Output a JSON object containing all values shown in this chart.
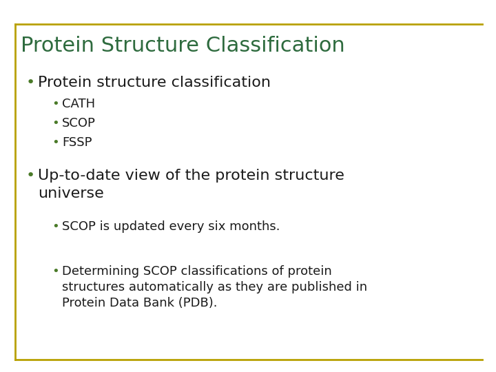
{
  "title": "Protein Structure Classification",
  "title_color": "#2E6B3E",
  "background_color": "#FFFFFF",
  "border_color": "#B8A000",
  "text_color": "#1A1A1A",
  "bullet_color": "#4A7A28",
  "title_fontsize": 22,
  "bullet1_fontsize": 16,
  "bullet2_fontsize": 13,
  "sub1_text": "Protein structure classification",
  "sub1_subitems": [
    "CATH",
    "SCOP",
    "FSSP"
  ],
  "sub2_text": "Up-to-date view of the protein structure\nuniverse",
  "sub2_subitems": [
    "SCOP is updated every six months.",
    "Determining SCOP classifications of protein\nstructures automatically as they are published in\nProtein Data Bank (PDB)."
  ]
}
